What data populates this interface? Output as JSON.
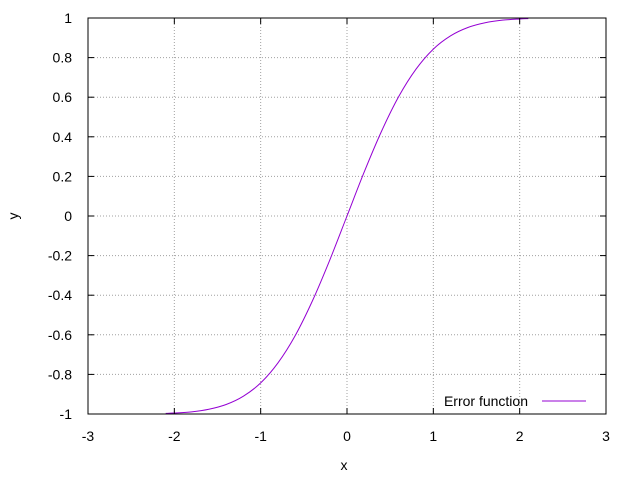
{
  "chart_data": {
    "type": "line",
    "title": "",
    "xlabel": "x",
    "ylabel": "y",
    "xlim": [
      -3,
      3
    ],
    "ylim": [
      -1,
      1
    ],
    "xticks": [
      -3,
      -2,
      -1,
      0,
      1,
      2,
      3
    ],
    "xtick_labels": [
      "-3",
      "-2",
      "-1",
      "0",
      "1",
      "2",
      "3"
    ],
    "yticks": [
      -1,
      -0.8,
      -0.6,
      -0.4,
      -0.2,
      0,
      0.2,
      0.4,
      0.6,
      0.8,
      1
    ],
    "ytick_labels": [
      "-1",
      "-0.8",
      "-0.6",
      "-0.4",
      "-0.2",
      "0",
      "0.2",
      "0.4",
      "0.6",
      "0.8",
      "1"
    ],
    "grid": true,
    "legend": {
      "position": "bottom-right"
    },
    "series": [
      {
        "name": "Error function",
        "color": "#9400d3",
        "x": [
          -2.1,
          -2.0,
          -1.8,
          -1.6,
          -1.4,
          -1.2,
          -1.0,
          -0.8,
          -0.6,
          -0.4,
          -0.2,
          0.0,
          0.2,
          0.4,
          0.6,
          0.8,
          1.0,
          1.2,
          1.4,
          1.6,
          1.8,
          2.0,
          2.1
        ],
        "y": [
          -0.997,
          -0.995,
          -0.989,
          -0.976,
          -0.952,
          -0.91,
          -0.843,
          -0.742,
          -0.604,
          -0.428,
          -0.223,
          0.0,
          0.223,
          0.428,
          0.604,
          0.742,
          0.843,
          0.91,
          0.952,
          0.976,
          0.989,
          0.995,
          0.997
        ]
      }
    ]
  }
}
